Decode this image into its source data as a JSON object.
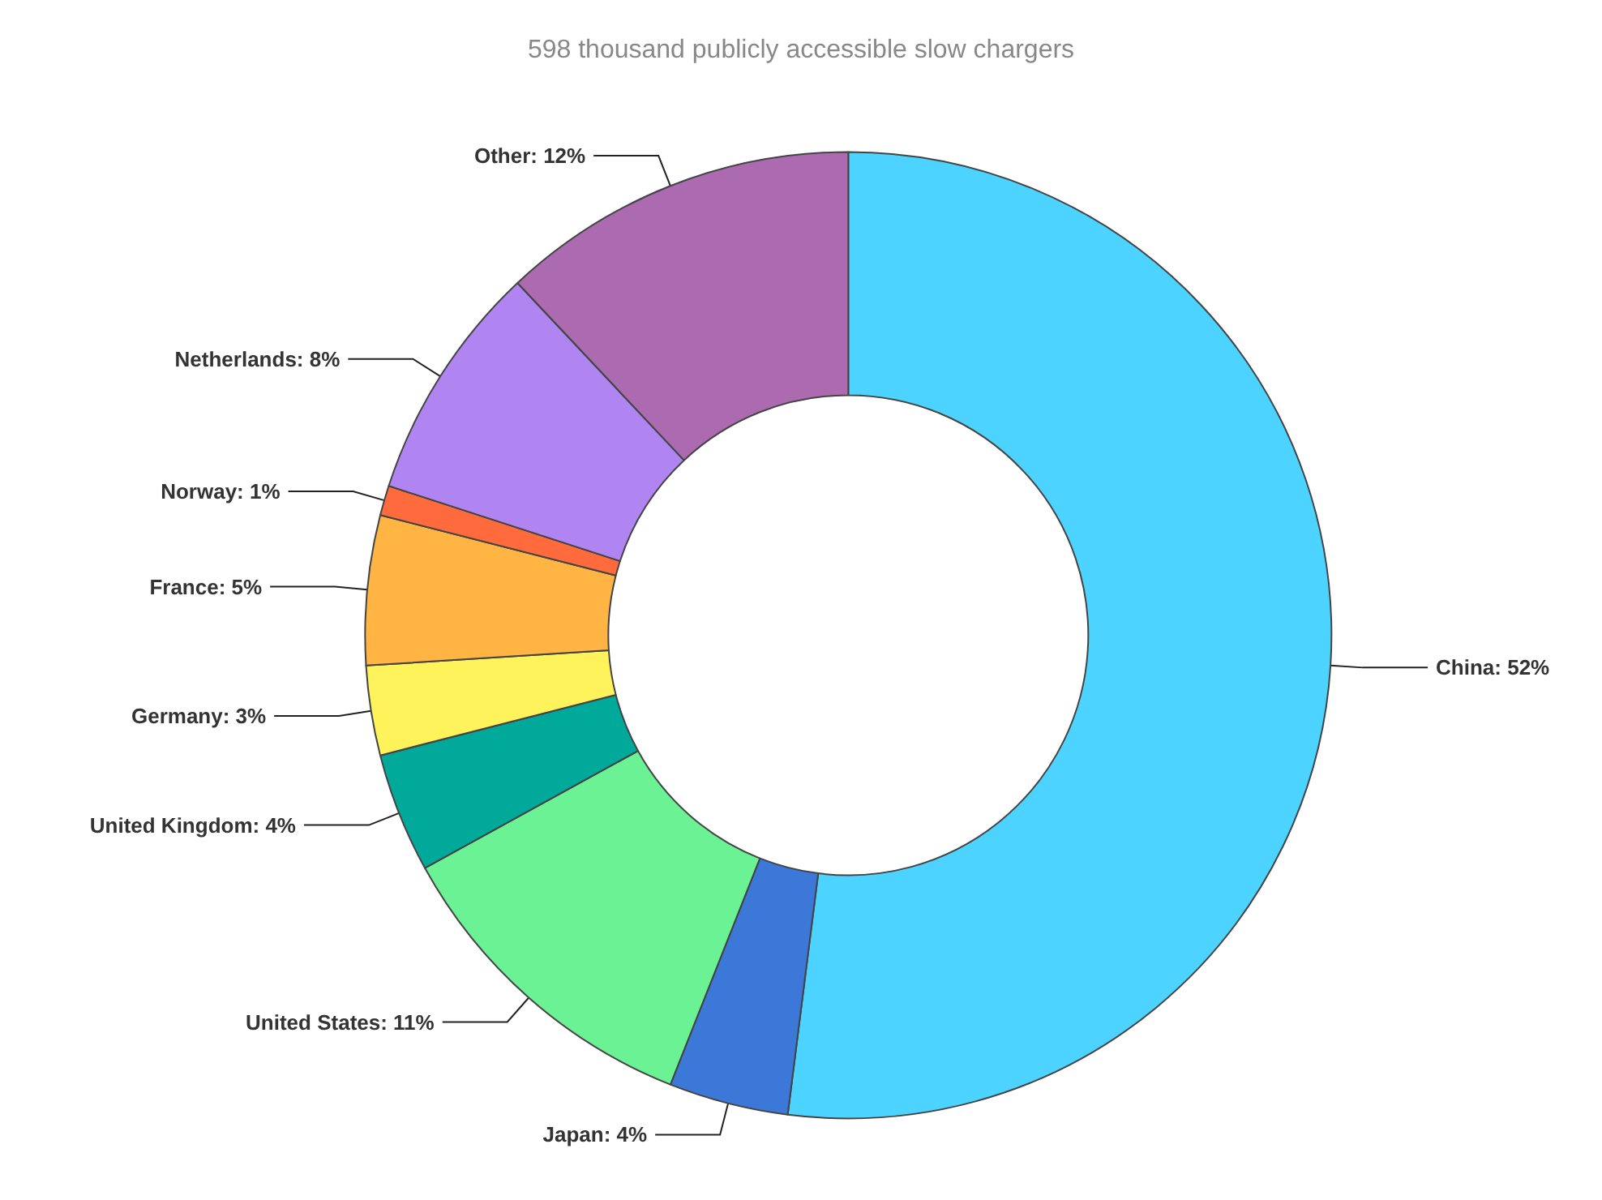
{
  "chart_data": {
    "type": "donut",
    "title": "598 thousand publicly accessible slow chargers",
    "categories": [
      "China",
      "Japan",
      "United States",
      "United Kingdom",
      "Germany",
      "France",
      "Norway",
      "Netherlands",
      "Other"
    ],
    "values": [
      52,
      4,
      11,
      4,
      3,
      5,
      1,
      8,
      12
    ],
    "value_labels": [
      "52%",
      "4%",
      "11%",
      "4%",
      "3%",
      "5%",
      "1%",
      "8%",
      "12%"
    ],
    "colors": [
      "#4dd3ff",
      "#3c78d8",
      "#6bf294",
      "#00a99a",
      "#fff35c",
      "#ffb444",
      "#ff6b3d",
      "#b085f2",
      "#ac6ab0"
    ],
    "legend": false
  }
}
